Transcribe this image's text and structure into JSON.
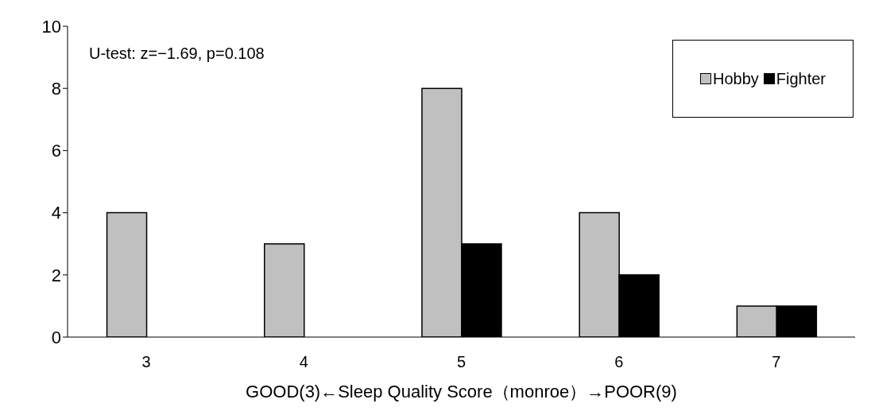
{
  "chart_data": {
    "type": "bar",
    "xlabel": "GOOD(3)←Sleep Quality Score（monroe）→POOR(9)",
    "categories": [
      "3",
      "4",
      "5",
      "6",
      "7"
    ],
    "series": [
      {
        "name": "Hobby",
        "color": "#c0c0c0",
        "values": [
          4,
          3,
          8,
          4,
          1
        ]
      },
      {
        "name": "Fighter",
        "color": "#000000",
        "values": [
          0,
          0,
          3,
          2,
          1
        ]
      }
    ],
    "ylim": [
      0,
      10
    ],
    "yticks": [
      0,
      2,
      4,
      6,
      8,
      10
    ],
    "legend": "top right",
    "annotations": [
      "U-test: z=−1.69, p=0.108"
    ]
  }
}
